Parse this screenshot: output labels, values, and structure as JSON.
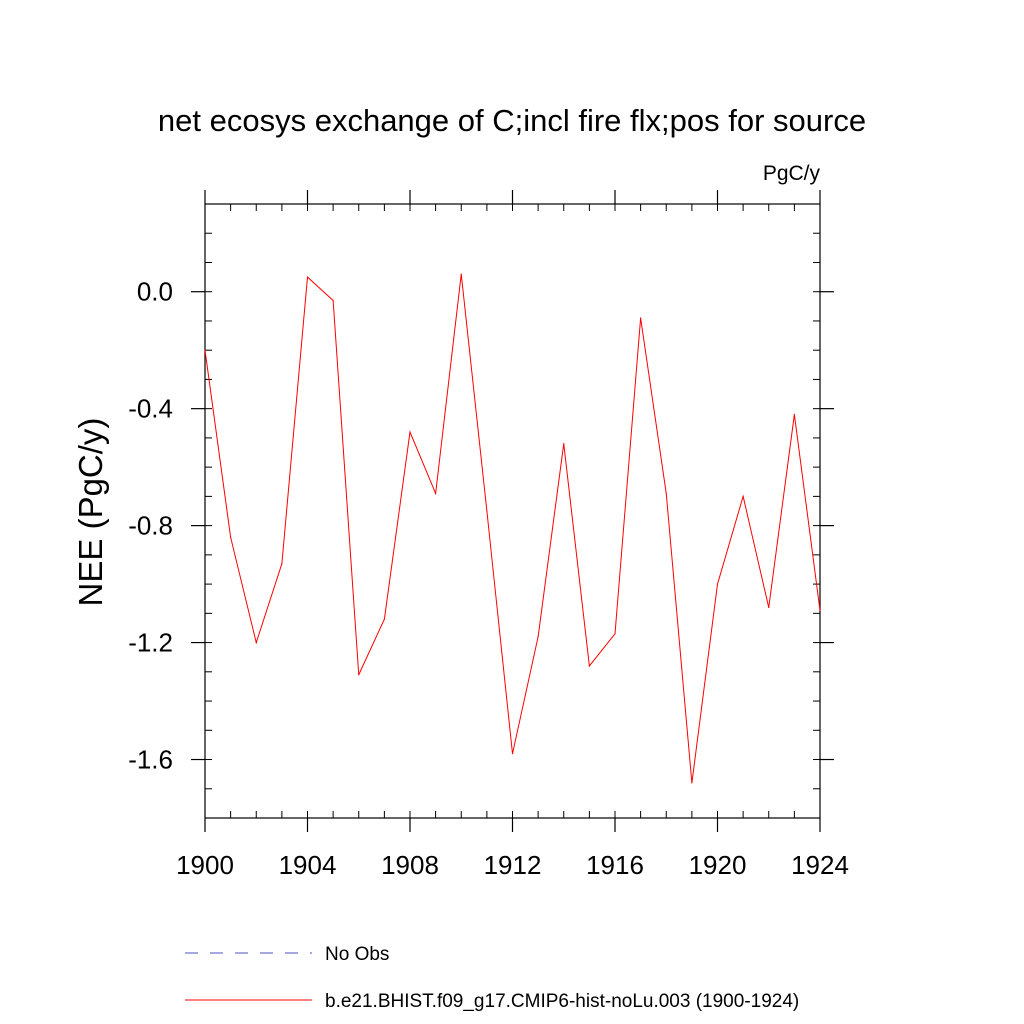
{
  "chart_data": {
    "type": "line",
    "title": "net ecosys exchange of C;incl fire flx;pos for source",
    "units": "PgC/y",
    "xlabel": "",
    "ylabel": "NEE  (PgC/y)",
    "xlim": [
      1900,
      1924
    ],
    "ylim": [
      -1.8,
      0.3
    ],
    "xticks": [
      "1900",
      "1904",
      "1908",
      "1912",
      "1916",
      "1920",
      "1924"
    ],
    "yticks": [
      "0.0",
      "-0.4",
      "-0.8",
      "-1.2",
      "-1.6"
    ],
    "grid": false,
    "legend_position": "bottom",
    "series": [
      {
        "name": "No Obs",
        "color": "#5050c0",
        "style": "dashed",
        "x": [],
        "y": []
      },
      {
        "name": "b.e21.BHIST.f09_g17.CMIP6-hist-noLu.003 (1900-1924)",
        "color": "#ff0000",
        "style": "solid",
        "x": [
          1900,
          1901,
          1902,
          1903,
          1904,
          1905,
          1906,
          1907,
          1908,
          1909,
          1910,
          1911,
          1912,
          1913,
          1914,
          1915,
          1916,
          1917,
          1918,
          1919,
          1920,
          1921,
          1922,
          1923,
          1924
        ],
        "y": [
          -0.2,
          -0.84,
          -1.2,
          -0.93,
          0.05,
          -0.03,
          -1.31,
          -1.12,
          -0.48,
          -0.69,
          0.06,
          -0.75,
          -1.58,
          -1.18,
          -0.52,
          -1.28,
          -1.17,
          -0.09,
          -0.69,
          -1.68,
          -1.0,
          -0.7,
          -1.08,
          -0.42,
          -1.09
        ]
      }
    ]
  }
}
